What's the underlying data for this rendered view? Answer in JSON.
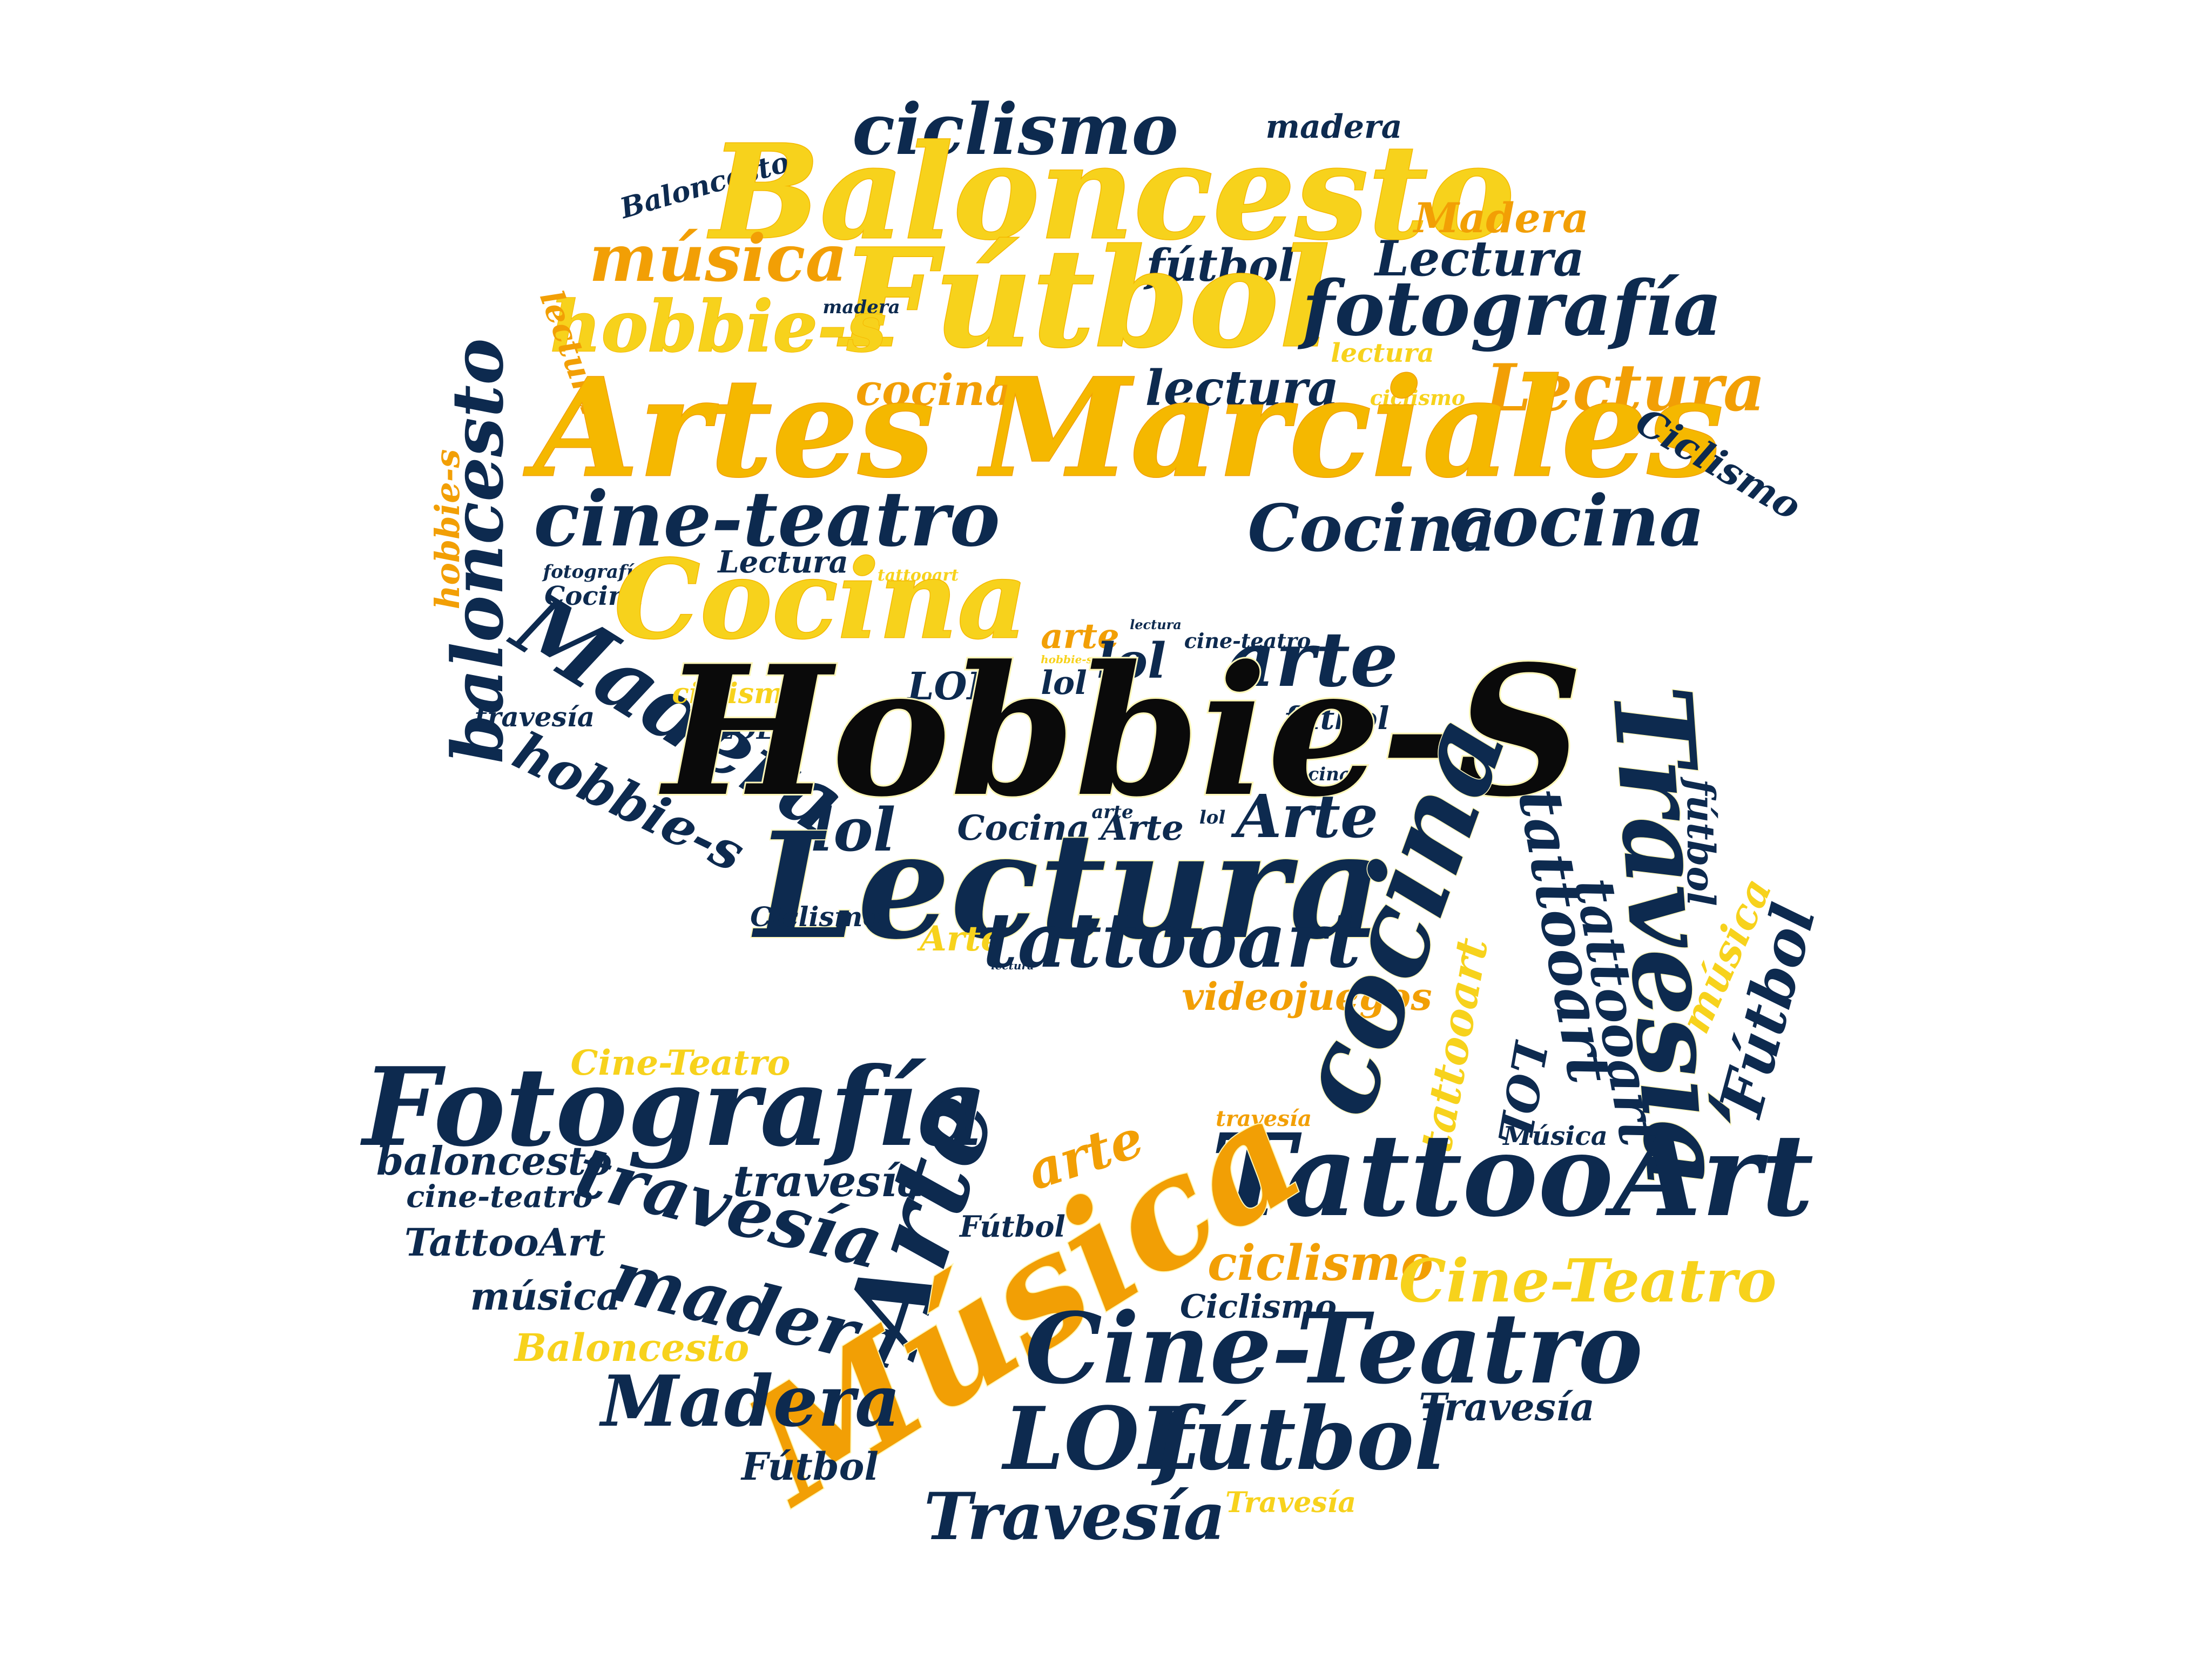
{
  "colors": {
    "navy": "#0d2a4f",
    "gold": "#f5b800",
    "orange": "#f29f05",
    "yellow": "#f7d21c",
    "black": "#0a0a0a",
    "highlight": "#fff7b8"
  },
  "words": [
    {
      "id": "hobbie-s-main",
      "text": "Hobbie-S"
    },
    {
      "id": "artes-marciales",
      "text": "Artes Marciales"
    },
    {
      "id": "baloncesto-large",
      "text": "Baloncesto"
    },
    {
      "id": "futbol-large",
      "text": "Fútbol"
    },
    {
      "id": "ciclismo-top",
      "text": "ciclismo"
    },
    {
      "id": "madera-top",
      "text": "madera"
    },
    {
      "id": "baloncesto-small-top",
      "text": "Baloncesto"
    },
    {
      "id": "madera-orange-top",
      "text": "Madera"
    },
    {
      "id": "musica-top",
      "text": "música"
    },
    {
      "id": "futbol-small-top",
      "text": "fútbol"
    },
    {
      "id": "lectura-top-right",
      "text": "Lectura"
    },
    {
      "id": "fotografia-top",
      "text": "fotografía"
    },
    {
      "id": "madera-tiny",
      "text": "madera"
    },
    {
      "id": "hobbie-s-yellow",
      "text": "hobbie-s"
    },
    {
      "id": "lectura-yellow-small",
      "text": "lectura"
    },
    {
      "id": "lectura-vertical-left",
      "text": "lectura"
    },
    {
      "id": "cocina-orange-top",
      "text": "cocina"
    },
    {
      "id": "lectura-navy-mid",
      "text": "lectura"
    },
    {
      "id": "ciclismo-tiny",
      "text": "ciclismo"
    },
    {
      "id": "lectura-orange-right",
      "text": "Lectura"
    },
    {
      "id": "ciclismo-rotated-right",
      "text": "Ciclismo"
    },
    {
      "id": "baloncesto-vertical",
      "text": "baloncesto"
    },
    {
      "id": "hobbie-s-vertical",
      "text": "hobbie-s"
    },
    {
      "id": "cine-teatro-top",
      "text": "cine-teatro"
    },
    {
      "id": "cocina-navy-italic",
      "text": "Cocina"
    },
    {
      "id": "cocina-navy-right",
      "text": "cocina"
    },
    {
      "id": "fotografia-small",
      "text": "fotografía"
    },
    {
      "id": "lectura-small-mid",
      "text": "Lectura"
    },
    {
      "id": "tattooart-tiny-top",
      "text": "tattooart"
    },
    {
      "id": "cocina-small-left",
      "text": "Cocina"
    },
    {
      "id": "cocina-yellow-large",
      "text": "Cocina"
    },
    {
      "id": "madera-rotated-large",
      "text": "Madera"
    },
    {
      "id": "arte-orange-small",
      "text": "arte"
    },
    {
      "id": "lectura-tiny",
      "text": "lectura"
    },
    {
      "id": "cine-teatro-tiny",
      "text": "cine-teatro"
    },
    {
      "id": "lol-small-1",
      "text": "lol"
    },
    {
      "id": "arte-navy-mid",
      "text": "arte"
    },
    {
      "id": "lol-small-2",
      "text": "lol"
    },
    {
      "id": "hobbie-s-tiny",
      "text": "hobbie-s"
    },
    {
      "id": "ciclismo-yellow-small",
      "text": "ciclismo"
    },
    {
      "id": "lol-caps-left",
      "text": "LOL"
    },
    {
      "id": "travesia-small-left",
      "text": "travesía"
    },
    {
      "id": "lol-caps-small",
      "text": "LOL"
    },
    {
      "id": "futbol-small-mid",
      "text": "fútbol"
    },
    {
      "id": "cocina-tiny-mid",
      "text": "cocina"
    },
    {
      "id": "hobbie-s-rotated",
      "text": "hobbie-s"
    },
    {
      "id": "lol-medium",
      "text": "lol"
    },
    {
      "id": "cocina-small-mid",
      "text": "Cocina"
    },
    {
      "id": "arte-tiny",
      "text": "arte"
    },
    {
      "id": "arte-small-mid",
      "text": "Arte"
    },
    {
      "id": "lol-tiny",
      "text": "lol"
    },
    {
      "id": "arte-navy-right",
      "text": "Arte"
    },
    {
      "id": "lectura-large",
      "text": "Lectura"
    },
    {
      "id": "ciclismo-rotated-large",
      "text": "Ciclismo"
    },
    {
      "id": "arte-small-bottom",
      "text": "Arte"
    },
    {
      "id": "tattooart-yellow-small",
      "text": "tattooart"
    },
    {
      "id": "lectura-navy-large",
      "text": "lectura"
    },
    {
      "id": "videojuegos-tiny",
      "text": "videojuegos"
    },
    {
      "id": "cocina-orange-mid",
      "text": "cocina"
    },
    {
      "id": "travesia-vertical-large",
      "text": "Travesía"
    },
    {
      "id": "tattooart-vertical",
      "text": "tattooart"
    },
    {
      "id": "futbol-vertical-small",
      "text": "fútbol"
    },
    {
      "id": "tattooart-vertical-2",
      "text": "tattooart"
    },
    {
      "id": "tattooart-yellow-vertical",
      "text": "tattooart"
    },
    {
      "id": "musica-yellow-vertical",
      "text": "música"
    },
    {
      "id": "futbol-vertical-right",
      "text": "Fútbol"
    },
    {
      "id": "lol-caps-rotated",
      "text": "LOL"
    },
    {
      "id": "musica-small",
      "text": "Música"
    },
    {
      "id": "cine-teatro-yellow",
      "text": "Cine-Teatro"
    },
    {
      "id": "fotografia-large",
      "text": "Fotografía"
    },
    {
      "id": "travesia-orange-tiny",
      "text": "travesía"
    },
    {
      "id": "baloncesto-navy-small",
      "text": "baloncesto"
    },
    {
      "id": "cine-teatro-small",
      "text": "cine-teatro"
    },
    {
      "id": "travesia-rotated",
      "text": "travesía"
    },
    {
      "id": "travesia-small-mid",
      "text": "travesía"
    },
    {
      "id": "arte-rotated-large",
      "text": "Arte"
    },
    {
      "id": "arte-orange-rotated",
      "text": "arte"
    },
    {
      "id": "tattooart-large",
      "text": "TattooArt"
    },
    {
      "id": "futbol-small-bottom",
      "text": "Fútbol"
    },
    {
      "id": "tattooart-small",
      "text": "TattooArt"
    },
    {
      "id": "musica-small-bottom",
      "text": "música"
    },
    {
      "id": "madera-rotated-bottom",
      "text": "madera"
    },
    {
      "id": "musica-large-orange",
      "text": "Música"
    },
    {
      "id": "ciclismo-orange-bottom",
      "text": "ciclismo"
    },
    {
      "id": "cine-teatro-yellow-bottom",
      "text": "Cine-Teatro"
    },
    {
      "id": "ciclismo-small-bottom",
      "text": "Ciclismo"
    },
    {
      "id": "cine-teatro-large",
      "text": "Cine-Teatro"
    },
    {
      "id": "baloncesto-yellow-bottom",
      "text": "Baloncesto"
    },
    {
      "id": "madera-bottom",
      "text": "Madera"
    },
    {
      "id": "lol-caps-bottom",
      "text": "LOL"
    },
    {
      "id": "futbol-bottom",
      "text": "fútbol"
    },
    {
      "id": "travesia-small-bottom",
      "text": "Travesía"
    },
    {
      "id": "futbol-small-bottom-left",
      "text": "Fútbol"
    },
    {
      "id": "travesia-bottom",
      "text": "Travesía"
    },
    {
      "id": "travesia-yellow-bottom",
      "text": "Travesía"
    }
  ]
}
